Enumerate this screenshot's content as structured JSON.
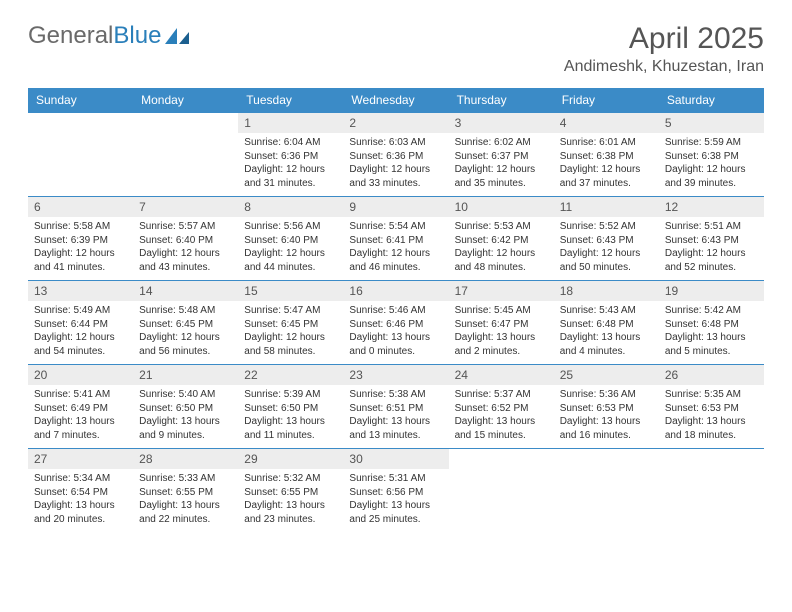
{
  "logo": {
    "word1": "General",
    "word2": "Blue"
  },
  "title": "April 2025",
  "location": "Andimeshk, Khuzestan, Iran",
  "colors": {
    "header_bg": "#3b8bc7",
    "header_fg": "#ffffff",
    "daynum_bg": "#ededed",
    "border": "#3b8bc7",
    "text": "#333333",
    "title": "#555555"
  },
  "weekdays": [
    "Sunday",
    "Monday",
    "Tuesday",
    "Wednesday",
    "Thursday",
    "Friday",
    "Saturday"
  ],
  "weeks": [
    [
      null,
      null,
      {
        "n": "1",
        "sr": "6:04 AM",
        "ss": "6:36 PM",
        "dl": "12 hours and 31 minutes."
      },
      {
        "n": "2",
        "sr": "6:03 AM",
        "ss": "6:36 PM",
        "dl": "12 hours and 33 minutes."
      },
      {
        "n": "3",
        "sr": "6:02 AM",
        "ss": "6:37 PM",
        "dl": "12 hours and 35 minutes."
      },
      {
        "n": "4",
        "sr": "6:01 AM",
        "ss": "6:38 PM",
        "dl": "12 hours and 37 minutes."
      },
      {
        "n": "5",
        "sr": "5:59 AM",
        "ss": "6:38 PM",
        "dl": "12 hours and 39 minutes."
      }
    ],
    [
      {
        "n": "6",
        "sr": "5:58 AM",
        "ss": "6:39 PM",
        "dl": "12 hours and 41 minutes."
      },
      {
        "n": "7",
        "sr": "5:57 AM",
        "ss": "6:40 PM",
        "dl": "12 hours and 43 minutes."
      },
      {
        "n": "8",
        "sr": "5:56 AM",
        "ss": "6:40 PM",
        "dl": "12 hours and 44 minutes."
      },
      {
        "n": "9",
        "sr": "5:54 AM",
        "ss": "6:41 PM",
        "dl": "12 hours and 46 minutes."
      },
      {
        "n": "10",
        "sr": "5:53 AM",
        "ss": "6:42 PM",
        "dl": "12 hours and 48 minutes."
      },
      {
        "n": "11",
        "sr": "5:52 AM",
        "ss": "6:43 PM",
        "dl": "12 hours and 50 minutes."
      },
      {
        "n": "12",
        "sr": "5:51 AM",
        "ss": "6:43 PM",
        "dl": "12 hours and 52 minutes."
      }
    ],
    [
      {
        "n": "13",
        "sr": "5:49 AM",
        "ss": "6:44 PM",
        "dl": "12 hours and 54 minutes."
      },
      {
        "n": "14",
        "sr": "5:48 AM",
        "ss": "6:45 PM",
        "dl": "12 hours and 56 minutes."
      },
      {
        "n": "15",
        "sr": "5:47 AM",
        "ss": "6:45 PM",
        "dl": "12 hours and 58 minutes."
      },
      {
        "n": "16",
        "sr": "5:46 AM",
        "ss": "6:46 PM",
        "dl": "13 hours and 0 minutes."
      },
      {
        "n": "17",
        "sr": "5:45 AM",
        "ss": "6:47 PM",
        "dl": "13 hours and 2 minutes."
      },
      {
        "n": "18",
        "sr": "5:43 AM",
        "ss": "6:48 PM",
        "dl": "13 hours and 4 minutes."
      },
      {
        "n": "19",
        "sr": "5:42 AM",
        "ss": "6:48 PM",
        "dl": "13 hours and 5 minutes."
      }
    ],
    [
      {
        "n": "20",
        "sr": "5:41 AM",
        "ss": "6:49 PM",
        "dl": "13 hours and 7 minutes."
      },
      {
        "n": "21",
        "sr": "5:40 AM",
        "ss": "6:50 PM",
        "dl": "13 hours and 9 minutes."
      },
      {
        "n": "22",
        "sr": "5:39 AM",
        "ss": "6:50 PM",
        "dl": "13 hours and 11 minutes."
      },
      {
        "n": "23",
        "sr": "5:38 AM",
        "ss": "6:51 PM",
        "dl": "13 hours and 13 minutes."
      },
      {
        "n": "24",
        "sr": "5:37 AM",
        "ss": "6:52 PM",
        "dl": "13 hours and 15 minutes."
      },
      {
        "n": "25",
        "sr": "5:36 AM",
        "ss": "6:53 PM",
        "dl": "13 hours and 16 minutes."
      },
      {
        "n": "26",
        "sr": "5:35 AM",
        "ss": "6:53 PM",
        "dl": "13 hours and 18 minutes."
      }
    ],
    [
      {
        "n": "27",
        "sr": "5:34 AM",
        "ss": "6:54 PM",
        "dl": "13 hours and 20 minutes."
      },
      {
        "n": "28",
        "sr": "5:33 AM",
        "ss": "6:55 PM",
        "dl": "13 hours and 22 minutes."
      },
      {
        "n": "29",
        "sr": "5:32 AM",
        "ss": "6:55 PM",
        "dl": "13 hours and 23 minutes."
      },
      {
        "n": "30",
        "sr": "5:31 AM",
        "ss": "6:56 PM",
        "dl": "13 hours and 25 minutes."
      },
      null,
      null,
      null
    ]
  ],
  "labels": {
    "sunrise": "Sunrise:",
    "sunset": "Sunset:",
    "daylight": "Daylight:"
  }
}
